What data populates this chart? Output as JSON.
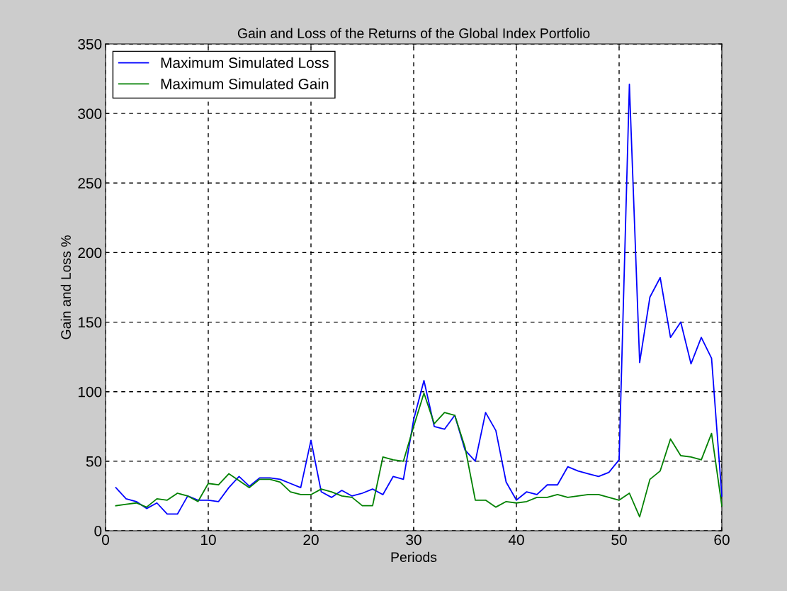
{
  "chart_data": {
    "type": "line",
    "title": "Gain and Loss of the Returns of the Global Index Portfolio",
    "xlabel": "Periods",
    "ylabel": "Gain and Loss %",
    "x": [
      1,
      2,
      3,
      4,
      5,
      6,
      7,
      8,
      9,
      10,
      11,
      12,
      13,
      14,
      15,
      16,
      17,
      18,
      19,
      20,
      21,
      22,
      23,
      24,
      25,
      26,
      27,
      28,
      29,
      30,
      31,
      32,
      33,
      34,
      35,
      36,
      37,
      38,
      39,
      40,
      41,
      42,
      43,
      44,
      45,
      46,
      47,
      48,
      49,
      50,
      51,
      52,
      53,
      54,
      55,
      56,
      57,
      58,
      59,
      60
    ],
    "series": [
      {
        "name": "Maximum Simulated Loss",
        "color": "#0000ff",
        "values": [
          31,
          23,
          21,
          16,
          20,
          12,
          12,
          25,
          22,
          22,
          21,
          31,
          39,
          32,
          38,
          38,
          37,
          34,
          31,
          65,
          28,
          24,
          29,
          25,
          27,
          30,
          26,
          39,
          37,
          80,
          108,
          75,
          73,
          83,
          58,
          50,
          85,
          72,
          35,
          22,
          28,
          26,
          33,
          33,
          46,
          43,
          41,
          39,
          42,
          51,
          321,
          121,
          168,
          182,
          139,
          150,
          120,
          139,
          124,
          25
        ]
      },
      {
        "name": "Maximum Simulated Gain",
        "color": "#008000",
        "values": [
          18,
          19,
          20,
          17,
          23,
          22,
          27,
          25,
          21,
          34,
          33,
          41,
          36,
          31,
          37,
          37,
          35,
          28,
          26,
          26,
          30,
          28,
          25,
          24,
          18,
          18,
          53,
          51,
          50,
          75,
          99,
          77,
          85,
          83,
          60,
          22,
          22,
          17,
          21,
          20,
          21,
          24,
          24,
          26,
          24,
          25,
          26,
          26,
          24,
          22,
          27,
          10,
          37,
          43,
          66,
          54,
          53,
          51,
          70,
          18
        ]
      }
    ],
    "xlim": [
      0,
      60
    ],
    "ylim": [
      0,
      350
    ],
    "xticks": [
      0,
      10,
      20,
      30,
      40,
      50,
      60
    ],
    "yticks": [
      0,
      50,
      100,
      150,
      200,
      250,
      300,
      350
    ],
    "grid": true,
    "legend": "top left",
    "marker": "none",
    "line_style": "solid"
  }
}
